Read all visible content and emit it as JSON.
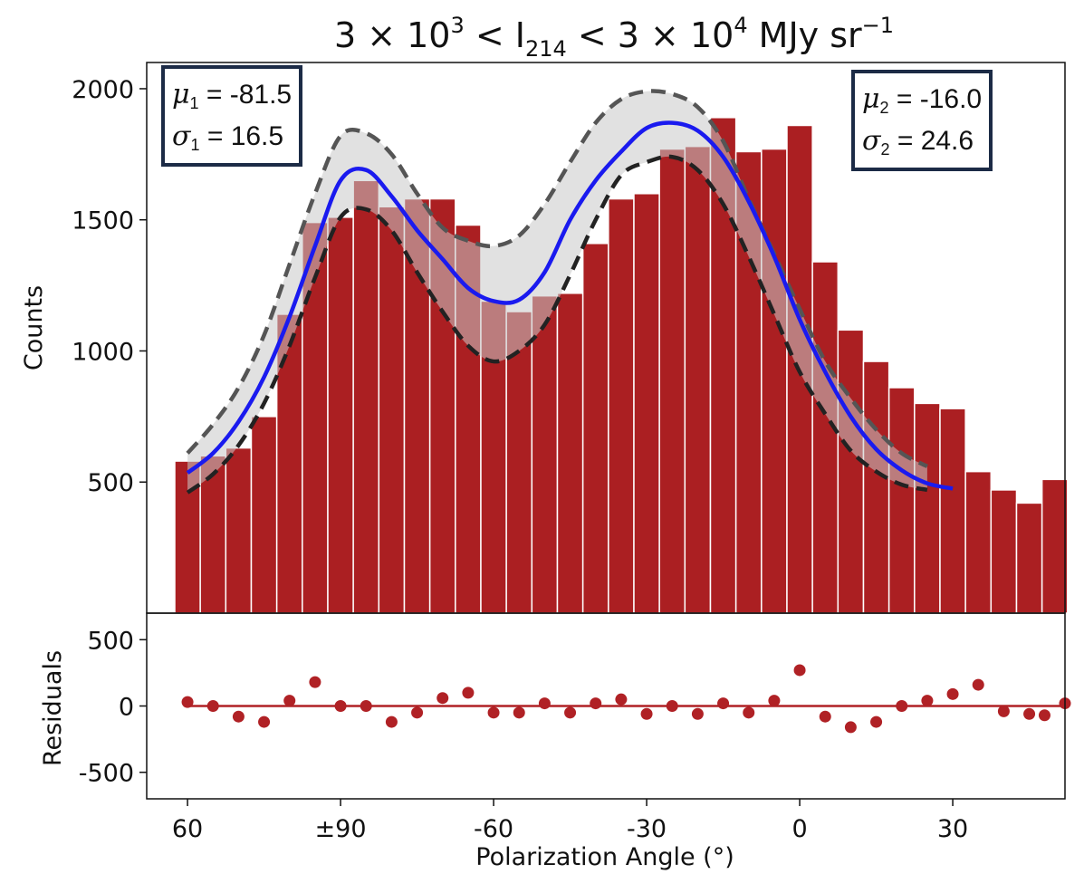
{
  "chart_data": {
    "type": "bar",
    "title": "3 × 10³ < I₂₁₄ < 3 × 10⁴ MJy sr⁻¹",
    "title_parts": {
      "lead": "3 × 10",
      "exp1": "3",
      "mid": " < I",
      "sub": "214",
      "mid2": " < 3 × 10",
      "exp2": "4",
      "tail": " MJy sr",
      "exp3": "−1"
    },
    "xlabel": "Polarization Angle (°)",
    "ylabel": "Counts",
    "residuals_ylabel": "Residuals",
    "x_ticks": [
      {
        "pos": 60,
        "label": "60"
      },
      {
        "pos": 90,
        "label": "±90"
      },
      {
        "pos": 120,
        "label": "-60"
      },
      {
        "pos": 150,
        "label": "-30"
      },
      {
        "pos": 180,
        "label": "0"
      },
      {
        "pos": 210,
        "label": "30"
      }
    ],
    "x_display_range": [
      52,
      232
    ],
    "ylim": [
      0,
      2100
    ],
    "y_ticks": [
      500,
      1000,
      1500,
      2000
    ],
    "residuals_ylim": [
      -700,
      700
    ],
    "residuals_y_ticks": [
      500,
      0,
      -500
    ],
    "residuals_y_labels": [
      "500",
      "0",
      "-500"
    ],
    "bin_width": 5,
    "bin_centers": [
      60,
      65,
      70,
      75,
      80,
      85,
      90,
      95,
      100,
      105,
      110,
      115,
      120,
      125,
      130,
      135,
      140,
      145,
      150,
      155,
      160,
      165,
      170,
      175,
      180,
      185,
      190,
      195,
      200,
      205,
      210,
      215,
      220,
      225,
      230
    ],
    "series": [
      {
        "kind": "histogram",
        "values": [
          580,
          600,
          630,
          750,
          1140,
          1490,
          1510,
          1650,
          1550,
          1580,
          1580,
          1480,
          1190,
          1150,
          1210,
          1220,
          1410,
          1580,
          1600,
          1770,
          1780,
          1890,
          1760,
          1770,
          1860,
          1340,
          1080,
          960,
          860,
          800,
          780,
          540,
          470,
          420,
          510
        ]
      },
      {
        "kind": "fit",
        "values": [
          535,
          610,
          730,
          900,
          1130,
          1400,
          1650,
          1690,
          1590,
          1460,
          1350,
          1240,
          1190,
          1195,
          1300,
          1500,
          1650,
          1760,
          1850,
          1870,
          1840,
          1740,
          1570,
          1360,
          1120,
          920,
          750,
          625,
          545,
          495,
          475
        ]
      },
      {
        "kind": "upper-band",
        "values": [
          610,
          720,
          860,
          1060,
          1330,
          1600,
          1820,
          1830,
          1750,
          1600,
          1470,
          1420,
          1400,
          1440,
          1560,
          1720,
          1870,
          1960,
          1990,
          1980,
          1930,
          1800,
          1580,
          1370,
          1160,
          960,
          820,
          700,
          610,
          560
        ]
      },
      {
        "kind": "lower-band",
        "values": [
          460,
          530,
          640,
          800,
          1020,
          1280,
          1510,
          1540,
          1460,
          1300,
          1150,
          1020,
          960,
          1000,
          1100,
          1290,
          1500,
          1670,
          1720,
          1740,
          1690,
          1560,
          1360,
          1140,
          920,
          760,
          620,
          540,
          490,
          470
        ]
      },
      {
        "kind": "residuals",
        "values": [
          30,
          0,
          -80,
          -120,
          40,
          180,
          0,
          0,
          -120,
          -50,
          60,
          100,
          -50,
          -50,
          20,
          -50,
          20,
          50,
          -60,
          0,
          -60,
          20,
          -50,
          40,
          270,
          -80,
          -160,
          -120,
          0,
          40,
          90,
          160,
          -40,
          -60,
          -70,
          20
        ]
      }
    ],
    "residuals_x": [
      60,
      65,
      70,
      75,
      80,
      85,
      90,
      95,
      100,
      105,
      110,
      115,
      120,
      125,
      130,
      135,
      140,
      145,
      150,
      155,
      160,
      165,
      170,
      175,
      180,
      185,
      190,
      195,
      200,
      205,
      210,
      215,
      220,
      225,
      228,
      232
    ],
    "colors": {
      "bars": "#ab1f22",
      "bar_edge": "#ffffff",
      "fit": "#1a1aef",
      "band": "#c8c8c8",
      "band_edge": "#555555",
      "lower_edge": "#222222",
      "residual": "#b02125"
    }
  },
  "annotations": {
    "left": {
      "mu_label": "μ",
      "mu_sub": "1",
      "mu_value": " = -81.5",
      "sigma_label": "σ",
      "sigma_sub": "1",
      "sigma_value": " = 16.5"
    },
    "right": {
      "mu_label": "μ",
      "mu_sub": "2",
      "mu_value": " = -16.0",
      "sigma_label": "σ",
      "sigma_sub": "2",
      "sigma_value": " = 24.6"
    }
  }
}
